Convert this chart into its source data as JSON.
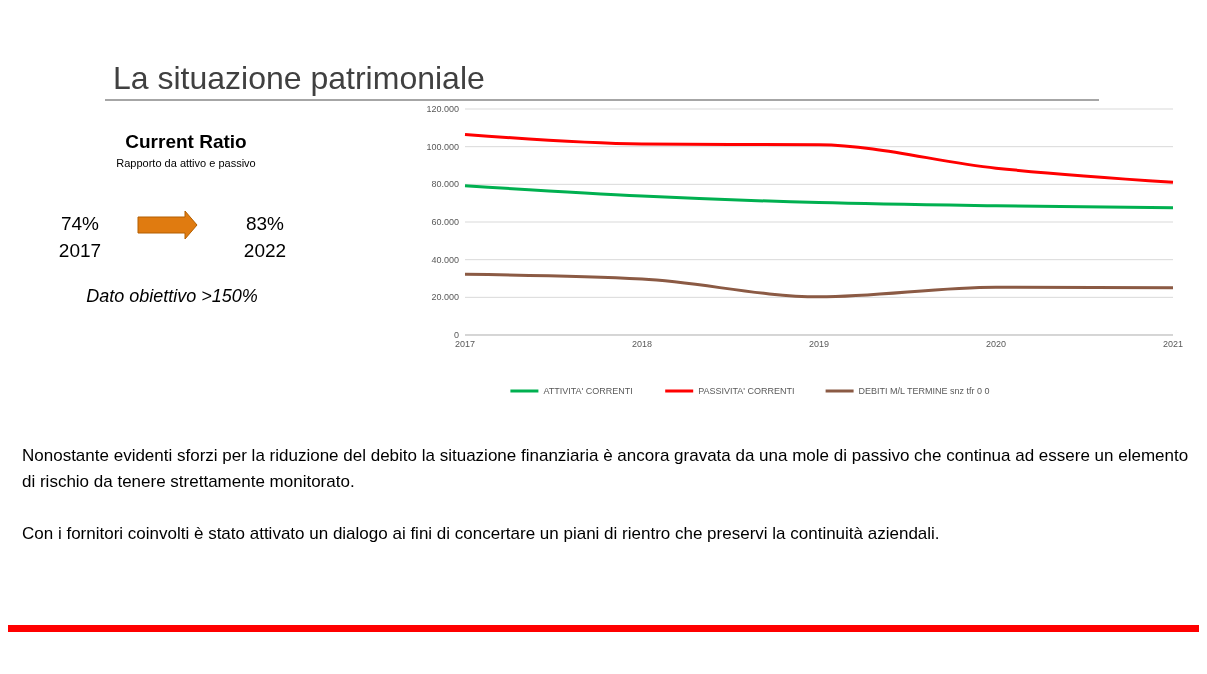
{
  "chart_data": {
    "type": "line",
    "title": "La situazione patrimoniale",
    "x": [
      2017,
      2018,
      2019,
      2020,
      2021
    ],
    "xlim": [
      2017,
      2021
    ],
    "xticks": [
      2017,
      2018,
      2019,
      2020,
      2021
    ],
    "ylim": [
      0,
      120000
    ],
    "yticks": [
      {
        "value": 0,
        "label": "0"
      },
      {
        "value": 20000,
        "label": "20.000"
      },
      {
        "value": 40000,
        "label": "40.000"
      },
      {
        "value": 60000,
        "label": "60.000"
      },
      {
        "value": 80000,
        "label": "80.000"
      },
      {
        "value": 100000,
        "label": "100.000"
      },
      {
        "value": 120000,
        "label": "120.000"
      }
    ],
    "series": [
      {
        "name": "ATTIVITA' CORRENTI",
        "color": "#00b050",
        "values": [
          79200,
          73800,
          70300,
          68600,
          67600
        ]
      },
      {
        "name": "PASSIVITA' CORRENTI",
        "color": "#ff0000",
        "values": [
          106500,
          101400,
          101000,
          88600,
          81100
        ]
      },
      {
        "name": "DEBITI M/L TERMINE snz tfr 0 0",
        "color": "#8b5a44",
        "values": [
          32200,
          29700,
          20300,
          25400,
          25100
        ]
      }
    ],
    "grid": "y",
    "legend": "bottom",
    "marker": "none",
    "line_style": "solid",
    "annotations": [
      "Current Ratio",
      "Rapporto da attivo e passivo",
      "74%",
      "2017",
      "83%",
      "2022",
      "Dato obiettivo >150%",
      "Nonostante evidenti sforzi per la riduzione del debito la situazione finanziaria è ancora gravata da una mole di passivo che continua ad essere un elemento di rischio da tenere strettamente monitorato.",
      "Con i fornitori coinvolti è stato attivato un dialogo ai fini di concertare un piani di rientro che preservi la continuità aziendali."
    ]
  }
}
